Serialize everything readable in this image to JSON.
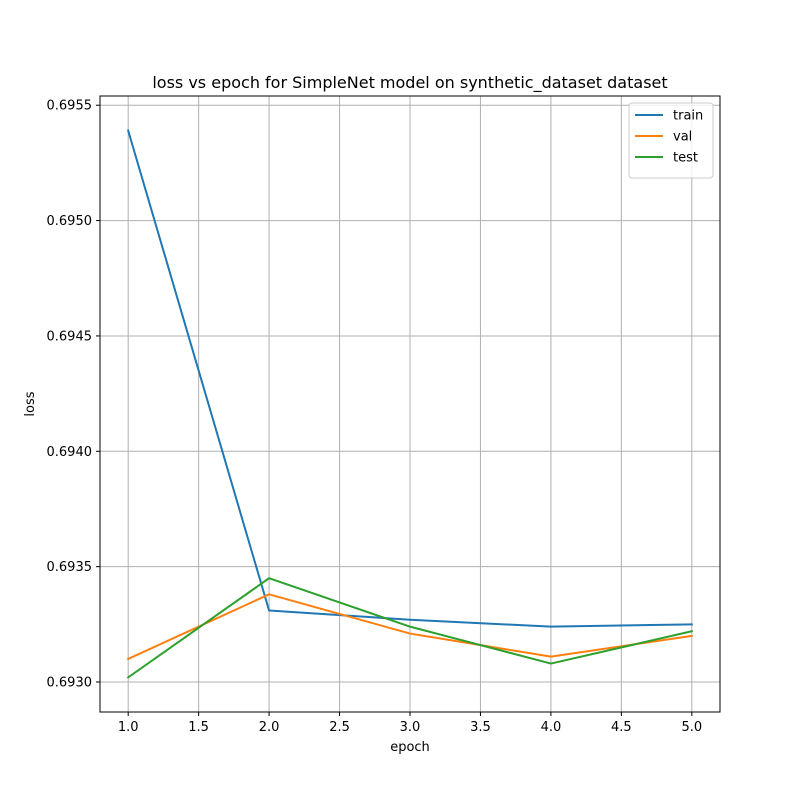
{
  "chart_data": {
    "type": "line",
    "title": "loss vs epoch for SimpleNet model on synthetic_dataset dataset",
    "xlabel": "epoch",
    "ylabel": "loss",
    "x": [
      1.0,
      2.0,
      3.0,
      4.0,
      5.0
    ],
    "xlim": [
      0.8,
      5.2
    ],
    "ylim": [
      0.69287,
      0.69554
    ],
    "xticks": [
      1.0,
      1.5,
      2.0,
      2.5,
      3.0,
      3.5,
      4.0,
      4.5,
      5.0
    ],
    "xtick_labels": [
      "1.0",
      "1.5",
      "2.0",
      "2.5",
      "3.0",
      "3.5",
      "4.0",
      "4.5",
      "5.0"
    ],
    "yticks": [
      0.693,
      0.6935,
      0.694,
      0.6945,
      0.695,
      0.6955
    ],
    "ytick_labels": [
      "0.6930",
      "0.6935",
      "0.6940",
      "0.6945",
      "0.6950",
      "0.6955"
    ],
    "grid": true,
    "legend_position": "top-right",
    "series": [
      {
        "name": "train",
        "color": "#1f77b4",
        "values": [
          0.69539,
          0.69331,
          0.69327,
          0.69324,
          0.69325
        ]
      },
      {
        "name": "val",
        "color": "#ff7f0e",
        "values": [
          0.6931,
          0.69338,
          0.69321,
          0.69311,
          0.6932
        ]
      },
      {
        "name": "test",
        "color": "#2ca02c",
        "values": [
          0.69302,
          0.69345,
          0.69324,
          0.69308,
          0.69322
        ]
      }
    ]
  }
}
